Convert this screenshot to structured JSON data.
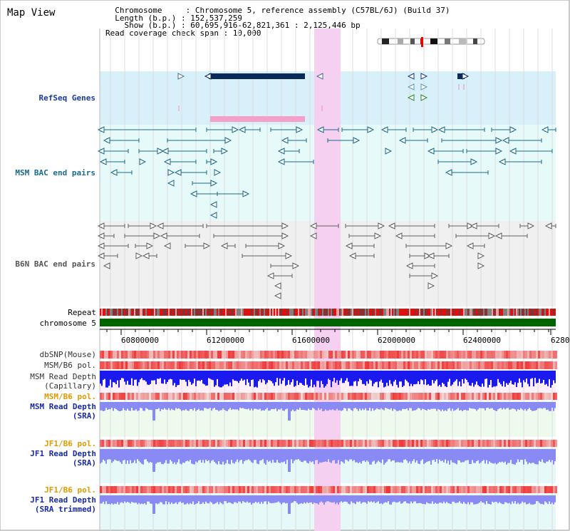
{
  "header": {
    "title": "Map View",
    "info_lines": [
      "  Chromosome     : Chromosome 5, reference assembly (C57BL/6J) (Build 37)",
      "  Length (b.p.) : 152,537,259",
      "    Show (b.p.) : 60,695,916-62,821,361 : 2,125,446 bp",
      "Read coverage check span : 10,000"
    ]
  },
  "tracks": {
    "refseq": "RefSeq Genes",
    "msm_bac": "MSM BAC end pairs",
    "b6n_bac": "B6N BAC end pairs",
    "repeat": "Repeat",
    "chromosome": "chromosome 5",
    "dbsnp": "dbSNP(Mouse)",
    "msm_b6_pol_1": "MSM/B6 pol.",
    "msm_read_depth_cap_1": "MSM Read Depth",
    "msm_read_depth_cap_2": "(Capillary)",
    "msm_b6_pol_2": "MSM/B6 pol.",
    "msm_read_depth_sra_1": "MSM Read Depth",
    "msm_read_depth_sra_2": "(SRA)",
    "jf1_b6_pol_1": "JF1/B6 pol.",
    "jf1_read_depth_1": "JF1 Read Depth",
    "jf1_read_depth_2": "(SRA)",
    "jf1_b6_pol_2": "JF1/B6 pol.",
    "jf1_read_depth_trim_1": "JF1 Read Depth",
    "jf1_read_depth_trim_2": "(SRA trimmed)"
  },
  "axis": {
    "ticks": [
      "60800000",
      "61200000",
      "61600000",
      "62000000",
      "62400000",
      "6280"
    ]
  },
  "colors": {
    "refseq_bg": "#d8f0fa",
    "msm_bg": "#e6fafa",
    "b6n_bg": "#f0f0f0",
    "highlight": "#f5d0f0",
    "gene": "#0a2a5a",
    "msm_pair": "#1a6a8a",
    "b6n_pair": "#606060",
    "chromosome": "#006400",
    "depth_capillary": "#1a1aee",
    "depth_sra": "#8a8af5"
  }
}
